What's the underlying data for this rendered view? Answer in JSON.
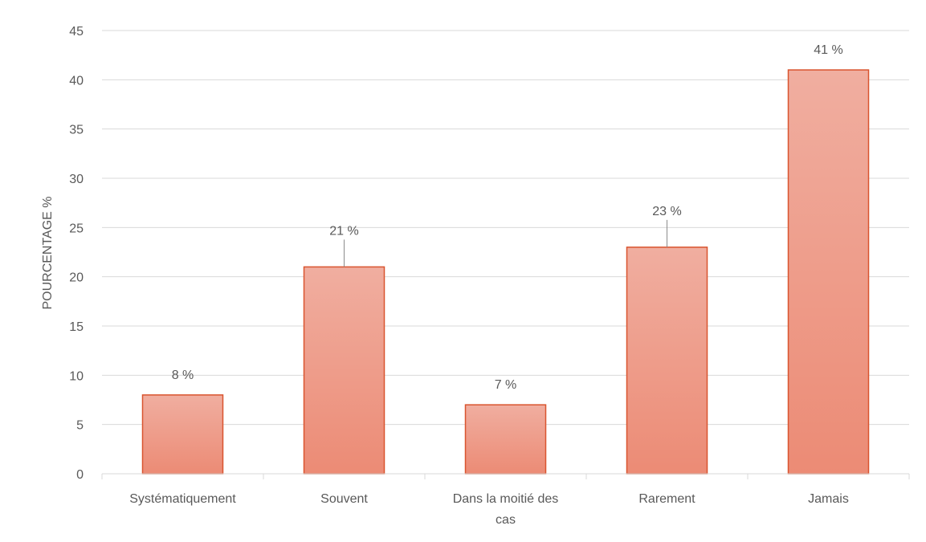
{
  "chart_data": {
    "type": "bar",
    "title": "",
    "xlabel": "",
    "ylabel": "POURCENTAGE %",
    "categories": [
      [
        "Systématiquement"
      ],
      [
        "Souvent"
      ],
      [
        "Dans la moitié des",
        "cas"
      ],
      [
        "Rarement"
      ],
      [
        "Jamais"
      ]
    ],
    "values": [
      8,
      21,
      7,
      23,
      41
    ],
    "data_labels": [
      "8 %",
      "21 %",
      "7 %",
      "23 %",
      "41 %"
    ],
    "ylim": [
      0,
      45
    ],
    "yticks": [
      0,
      5,
      10,
      15,
      20,
      25,
      30,
      35,
      40,
      45
    ],
    "grid": true,
    "legend": "none",
    "colors": {
      "bar_top": "#f0aea0",
      "bar_bottom": "#ec8b75",
      "bar_border": "#d9542f",
      "grid": "#d9d9d9",
      "text": "#595959",
      "leader": "#8c8c8c"
    }
  }
}
